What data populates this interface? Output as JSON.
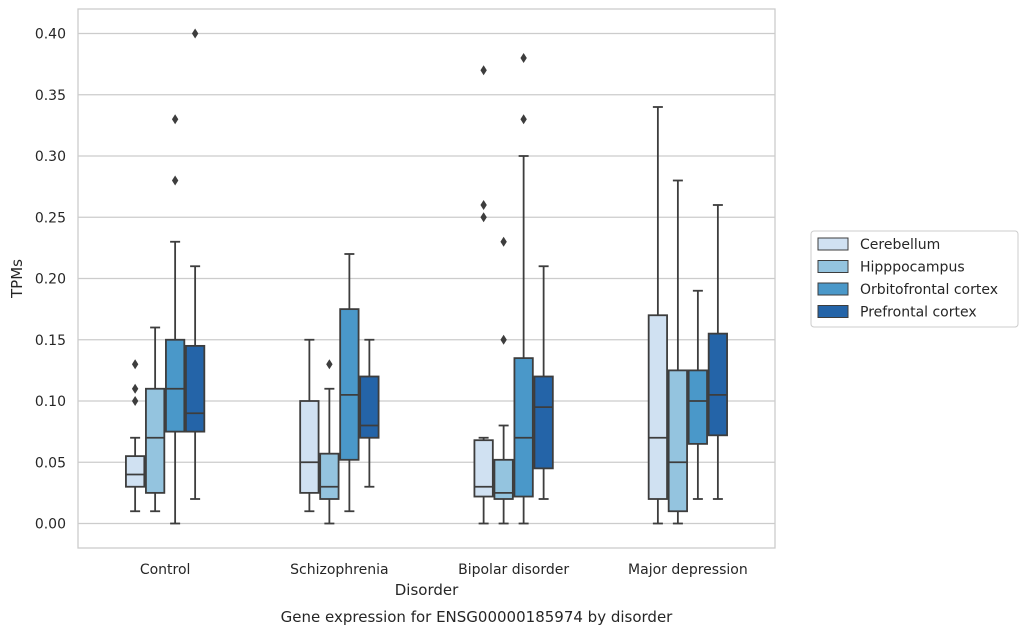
{
  "caption": "Gene expression for ENSG00000185974 by disorder",
  "chart_data": {
    "type": "box",
    "xlabel": "Disorder",
    "ylabel": "TPMs",
    "ylim": [
      -0.02,
      0.42
    ],
    "yticks": [
      "0.00",
      "0.05",
      "0.10",
      "0.15",
      "0.20",
      "0.25",
      "0.30",
      "0.35",
      "0.40"
    ],
    "ytick_values": [
      0.0,
      0.05,
      0.1,
      0.15,
      0.2,
      0.25,
      0.3,
      0.35,
      0.4
    ],
    "grid": "horizontal",
    "legend_position": "right",
    "categories": [
      "Control",
      "Schizophrenia",
      "Bipolar disorder",
      "Major depression"
    ],
    "series": [
      {
        "name": "Cerebellum",
        "color": "#d0e1f2",
        "boxes": [
          {
            "min": 0.01,
            "q1": 0.03,
            "median": 0.04,
            "q3": 0.055,
            "max": 0.07,
            "outliers": [
              0.1,
              0.11,
              0.13
            ]
          },
          {
            "min": 0.01,
            "q1": 0.025,
            "median": 0.05,
            "q3": 0.1,
            "max": 0.15,
            "outliers": []
          },
          {
            "min": 0.0,
            "q1": 0.022,
            "median": 0.03,
            "q3": 0.068,
            "max": 0.07,
            "outliers": [
              0.25,
              0.26,
              0.37
            ]
          },
          {
            "min": 0.0,
            "q1": 0.02,
            "median": 0.07,
            "q3": 0.17,
            "max": 0.34,
            "outliers": []
          }
        ]
      },
      {
        "name": "Hipppocampus",
        "color": "#94c4df",
        "boxes": [
          {
            "min": 0.01,
            "q1": 0.025,
            "median": 0.07,
            "q3": 0.11,
            "max": 0.16,
            "outliers": []
          },
          {
            "min": 0.0,
            "q1": 0.02,
            "median": 0.03,
            "q3": 0.057,
            "max": 0.11,
            "outliers": [
              0.13
            ]
          },
          {
            "min": 0.0,
            "q1": 0.02,
            "median": 0.025,
            "q3": 0.052,
            "max": 0.08,
            "outliers": [
              0.15,
              0.23
            ]
          },
          {
            "min": 0.0,
            "q1": 0.01,
            "median": 0.05,
            "q3": 0.125,
            "max": 0.28,
            "outliers": []
          }
        ]
      },
      {
        "name": "Orbitofrontal cortex",
        "color": "#4a98c9",
        "boxes": [
          {
            "min": 0.0,
            "q1": 0.075,
            "median": 0.11,
            "q3": 0.15,
            "max": 0.23,
            "outliers": [
              0.28,
              0.33
            ]
          },
          {
            "min": 0.01,
            "q1": 0.052,
            "median": 0.105,
            "q3": 0.175,
            "max": 0.22,
            "outliers": []
          },
          {
            "min": 0.0,
            "q1": 0.022,
            "median": 0.07,
            "q3": 0.135,
            "max": 0.3,
            "outliers": [
              0.33,
              0.38
            ]
          },
          {
            "min": 0.02,
            "q1": 0.065,
            "median": 0.1,
            "q3": 0.125,
            "max": 0.19,
            "outliers": []
          }
        ]
      },
      {
        "name": "Prefrontal cortex",
        "color": "#2464a8",
        "boxes": [
          {
            "min": 0.02,
            "q1": 0.075,
            "median": 0.09,
            "q3": 0.145,
            "max": 0.21,
            "outliers": [
              0.4
            ]
          },
          {
            "min": 0.03,
            "q1": 0.07,
            "median": 0.08,
            "q3": 0.12,
            "max": 0.15,
            "outliers": []
          },
          {
            "min": 0.02,
            "q1": 0.045,
            "median": 0.095,
            "q3": 0.12,
            "max": 0.21,
            "outliers": []
          },
          {
            "min": 0.02,
            "q1": 0.072,
            "median": 0.105,
            "q3": 0.155,
            "max": 0.26,
            "outliers": []
          }
        ]
      }
    ]
  }
}
